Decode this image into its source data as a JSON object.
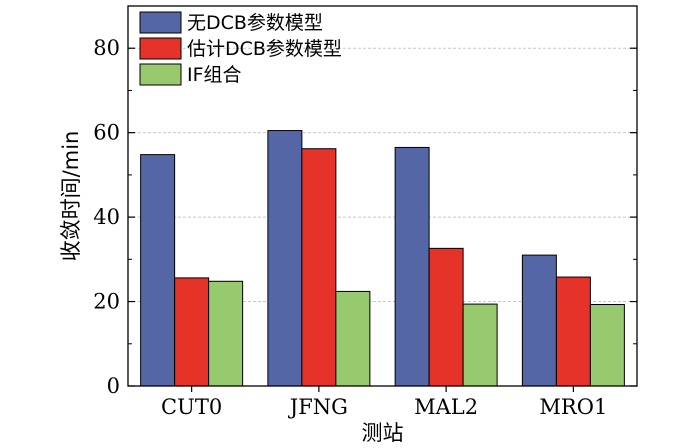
{
  "chart_data": {
    "type": "bar",
    "title": "",
    "xlabel": "测站",
    "ylabel": "收敛时间/min",
    "categories": [
      "CUT0",
      "JFNG",
      "MAL2",
      "MRO1"
    ],
    "ylim": [
      0,
      90
    ],
    "yticks": [
      0,
      20,
      40,
      60,
      80
    ],
    "grid": true,
    "legend_position": "top-left",
    "series": [
      {
        "name": "无DCB参数模型",
        "color": "#5566a6",
        "values": [
          54.8,
          60.5,
          56.5,
          31.0
        ]
      },
      {
        "name": "估计DCB参数模型",
        "color": "#e5332a",
        "values": [
          25.6,
          56.2,
          32.6,
          25.8
        ]
      },
      {
        "name": "IF组合",
        "color": "#97c96f",
        "values": [
          24.8,
          22.4,
          19.4,
          19.3
        ]
      }
    ]
  }
}
